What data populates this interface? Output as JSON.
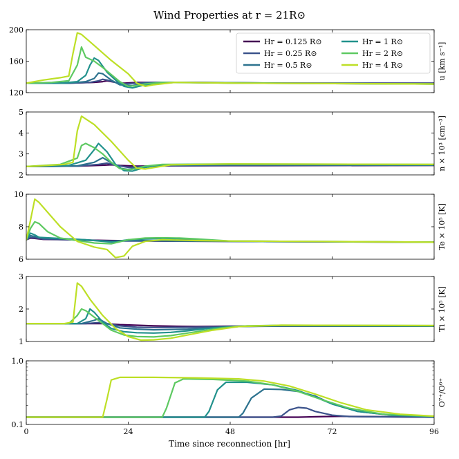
{
  "figure": {
    "title": "Wind Properties at r = 21R⊙",
    "xlabel": "Time since reconnection [hr]"
  },
  "colors": {
    "0.125": "#440154",
    "0.25": "#3b528b",
    "0.5": "#2c728e",
    "1": "#21918c",
    "2": "#5ec962",
    "4": "#bddf26"
  },
  "chart_data": [
    {
      "type": "line",
      "panel": "u",
      "ylabel": "u [km s⁻¹]",
      "ylim": [
        120,
        200
      ],
      "yticks": [
        120,
        160,
        200
      ],
      "xlim": [
        0,
        96
      ],
      "xticks": [
        0,
        24,
        48,
        72,
        96
      ],
      "legend": {
        "placement": "top-right",
        "entries": [
          "Hr = 0.125 R⊙",
          "Hr = 0.25 R⊙",
          "Hr = 0.5 R⊙",
          "Hr = 1 R⊙",
          "Hr = 2 R⊙",
          "Hr = 4 R⊙"
        ]
      },
      "series": [
        {
          "name": "Hr = 0.125 R⊙",
          "key": "0.125",
          "x": [
            0,
            10,
            16,
            18,
            19,
            20,
            21,
            23,
            26,
            30,
            40,
            60,
            96
          ],
          "y": [
            132,
            132,
            133,
            134,
            135,
            134,
            133,
            132,
            133,
            133,
            133,
            132,
            132
          ]
        },
        {
          "name": "Hr = 0.25 R⊙",
          "key": "0.25",
          "x": [
            0,
            10,
            15,
            17,
            18,
            19,
            21,
            23,
            26,
            30,
            40,
            60,
            96
          ],
          "y": [
            132,
            132,
            133,
            135,
            137,
            136,
            133,
            131,
            132,
            133,
            133,
            132,
            132
          ]
        },
        {
          "name": "Hr = 0.5 R⊙",
          "key": "0.5",
          "x": [
            0,
            10,
            14,
            16,
            17,
            18,
            20,
            22,
            25,
            28,
            35,
            50,
            96
          ],
          "y": [
            132,
            132,
            134,
            138,
            145,
            144,
            136,
            130,
            129,
            132,
            133,
            132,
            131
          ]
        },
        {
          "name": "Hr = 1 R⊙",
          "key": "1",
          "x": [
            0,
            8,
            12,
            14,
            15,
            16,
            17,
            19,
            21,
            23,
            25,
            28,
            35,
            60,
            96
          ],
          "y": [
            132,
            132,
            134,
            142,
            155,
            164,
            161,
            146,
            136,
            128,
            126,
            130,
            133,
            132,
            131
          ]
        },
        {
          "name": "Hr = 2 R⊙",
          "key": "2",
          "x": [
            0,
            6,
            10,
            12,
            13,
            14,
            16,
            18,
            20,
            22,
            24,
            26,
            28,
            32,
            50,
            96
          ],
          "y": [
            132,
            133,
            135,
            155,
            178,
            165,
            160,
            152,
            143,
            134,
            128,
            129,
            131,
            133,
            132,
            131
          ]
        },
        {
          "name": "Hr = 4 R⊙",
          "key": "4",
          "x": [
            0,
            4,
            8,
            10,
            11,
            12,
            13,
            16,
            20,
            24,
            26,
            28,
            30,
            35,
            50,
            96
          ],
          "y": [
            132,
            136,
            139,
            141,
            170,
            196,
            194,
            180,
            161,
            144,
            132,
            128,
            130,
            133,
            132,
            131
          ]
        }
      ]
    },
    {
      "type": "line",
      "panel": "n",
      "ylabel": "n × 10³ [cm⁻³]",
      "ylim": [
        2,
        5
      ],
      "yticks": [
        2,
        3,
        4,
        5
      ],
      "xlim": [
        0,
        96
      ],
      "xticks": [
        0,
        24,
        48,
        72,
        96
      ],
      "series": [
        {
          "name": "Hr = 0.125 R⊙",
          "key": "0.125",
          "x": [
            0,
            12,
            18,
            20,
            22,
            26,
            32,
            48,
            96
          ],
          "y": [
            2.4,
            2.42,
            2.46,
            2.48,
            2.45,
            2.42,
            2.43,
            2.44,
            2.45
          ]
        },
        {
          "name": "Hr = 0.25 R⊙",
          "key": "0.25",
          "x": [
            0,
            12,
            17,
            19,
            21,
            24,
            28,
            32,
            48,
            96
          ],
          "y": [
            2.4,
            2.42,
            2.5,
            2.56,
            2.46,
            2.36,
            2.4,
            2.44,
            2.45,
            2.46
          ]
        },
        {
          "name": "Hr = 0.5 R⊙",
          "key": "0.5",
          "x": [
            0,
            12,
            16,
            18,
            20,
            22,
            24,
            27,
            32,
            48,
            96
          ],
          "y": [
            2.4,
            2.43,
            2.6,
            2.82,
            2.58,
            2.32,
            2.26,
            2.38,
            2.46,
            2.48,
            2.47
          ]
        },
        {
          "name": "Hr = 1 R⊙",
          "key": "1",
          "x": [
            0,
            10,
            14,
            16,
            17,
            19,
            21,
            23,
            25,
            28,
            32,
            48,
            96
          ],
          "y": [
            2.4,
            2.45,
            2.7,
            3.2,
            3.5,
            3.1,
            2.5,
            2.2,
            2.18,
            2.36,
            2.48,
            2.5,
            2.48
          ]
        },
        {
          "name": "Hr = 2 R⊙",
          "key": "2",
          "x": [
            0,
            8,
            12,
            13,
            14,
            16,
            18,
            20,
            22,
            24,
            26,
            28,
            32,
            48,
            96
          ],
          "y": [
            2.4,
            2.5,
            2.8,
            3.4,
            3.5,
            3.3,
            3.0,
            2.6,
            2.3,
            2.24,
            2.3,
            2.42,
            2.5,
            2.52,
            2.5
          ]
        },
        {
          "name": "Hr = 4 R⊙",
          "key": "4",
          "x": [
            0,
            5,
            9,
            11,
            12,
            13,
            16,
            20,
            24,
            26,
            28,
            30,
            34,
            48,
            96
          ],
          "y": [
            2.4,
            2.45,
            2.5,
            2.6,
            4.1,
            4.8,
            4.4,
            3.6,
            2.7,
            2.32,
            2.28,
            2.35,
            2.48,
            2.52,
            2.5
          ]
        }
      ]
    },
    {
      "type": "line",
      "panel": "Te",
      "ylabel": "Te × 10⁵ [K]",
      "ylim": [
        6,
        10
      ],
      "yticks": [
        6,
        8,
        10
      ],
      "xlim": [
        0,
        96
      ],
      "xticks": [
        0,
        24,
        48,
        72,
        96
      ],
      "series": [
        {
          "name": "Hr = 0.125 R⊙",
          "key": "0.125",
          "x": [
            0,
            1,
            2,
            4,
            10,
            20,
            30,
            48,
            96
          ],
          "y": [
            7.2,
            7.3,
            7.28,
            7.22,
            7.2,
            7.15,
            7.12,
            7.1,
            7.05
          ]
        },
        {
          "name": "Hr = 0.25 R⊙",
          "key": "0.25",
          "x": [
            0,
            1,
            2,
            4,
            10,
            20,
            30,
            48,
            96
          ],
          "y": [
            7.2,
            7.35,
            7.32,
            7.24,
            7.2,
            7.12,
            7.12,
            7.1,
            7.05
          ]
        },
        {
          "name": "Hr = 0.5 R⊙",
          "key": "0.5",
          "x": [
            0,
            1,
            2,
            4,
            10,
            20,
            24,
            30,
            48,
            96
          ],
          "y": [
            7.2,
            7.45,
            7.4,
            7.3,
            7.25,
            7.1,
            7.15,
            7.15,
            7.1,
            7.05
          ]
        },
        {
          "name": "Hr = 1 R⊙",
          "key": "1",
          "x": [
            0,
            1,
            2,
            3,
            6,
            10,
            14,
            18,
            20,
            24,
            28,
            32,
            40,
            48,
            96
          ],
          "y": [
            7.2,
            7.6,
            7.5,
            7.35,
            7.3,
            7.25,
            7.2,
            7.1,
            7.05,
            7.2,
            7.25,
            7.28,
            7.2,
            7.12,
            7.05
          ]
        },
        {
          "name": "Hr = 2 R⊙",
          "key": "2",
          "x": [
            0,
            1,
            2,
            3,
            5,
            8,
            12,
            16,
            20,
            24,
            28,
            32,
            36,
            40,
            48,
            96
          ],
          "y": [
            7.2,
            7.9,
            8.3,
            8.2,
            7.7,
            7.3,
            7.15,
            7.0,
            6.95,
            7.2,
            7.3,
            7.32,
            7.3,
            7.25,
            7.12,
            7.05
          ]
        },
        {
          "name": "Hr = 4 R⊙",
          "key": "4",
          "x": [
            0,
            1,
            2,
            3,
            5,
            8,
            12,
            16,
            19,
            21,
            23,
            25,
            28,
            32,
            40,
            48,
            96
          ],
          "y": [
            7.2,
            8.4,
            9.7,
            9.5,
            8.9,
            8.0,
            7.1,
            6.75,
            6.6,
            6.1,
            6.2,
            6.8,
            7.1,
            7.2,
            7.15,
            7.12,
            7.05
          ]
        }
      ]
    },
    {
      "type": "line",
      "panel": "Ti",
      "ylabel": "Ti × 10⁵ [K]",
      "ylim": [
        1,
        3
      ],
      "yticks": [
        1,
        2,
        3
      ],
      "xlim": [
        0,
        96
      ],
      "xticks": [
        0,
        24,
        48,
        72,
        96
      ],
      "series": [
        {
          "name": "Hr = 0.125 R⊙",
          "key": "0.125",
          "x": [
            0,
            14,
            18,
            22,
            26,
            30,
            40,
            48,
            60,
            96
          ],
          "y": [
            1.55,
            1.55,
            1.55,
            1.52,
            1.5,
            1.48,
            1.46,
            1.47,
            1.48,
            1.48
          ]
        },
        {
          "name": "Hr = 0.25 R⊙",
          "key": "0.25",
          "x": [
            0,
            14,
            17,
            19,
            22,
            26,
            30,
            40,
            48,
            60,
            96
          ],
          "y": [
            1.55,
            1.55,
            1.58,
            1.55,
            1.48,
            1.44,
            1.43,
            1.44,
            1.46,
            1.47,
            1.47
          ]
        },
        {
          "name": "Hr = 0.5 R⊙",
          "key": "0.5",
          "x": [
            0,
            13,
            16,
            17,
            19,
            22,
            26,
            30,
            38,
            44,
            50,
            60,
            96
          ],
          "y": [
            1.55,
            1.55,
            1.65,
            1.7,
            1.55,
            1.42,
            1.38,
            1.36,
            1.38,
            1.42,
            1.46,
            1.48,
            1.47
          ]
        },
        {
          "name": "Hr = 1 R⊙",
          "key": "1",
          "x": [
            0,
            12,
            14,
            15,
            16,
            18,
            20,
            23,
            26,
            30,
            34,
            38,
            44,
            50,
            60,
            96
          ],
          "y": [
            1.55,
            1.55,
            1.7,
            2.0,
            1.9,
            1.6,
            1.4,
            1.3,
            1.27,
            1.26,
            1.28,
            1.33,
            1.42,
            1.47,
            1.49,
            1.48
          ]
        },
        {
          "name": "Hr = 2 R⊙",
          "key": "2",
          "x": [
            0,
            10,
            12,
            13,
            14,
            16,
            18,
            20,
            23,
            26,
            30,
            34,
            40,
            46,
            52,
            60,
            96
          ],
          "y": [
            1.55,
            1.55,
            1.8,
            2.0,
            1.95,
            1.75,
            1.55,
            1.35,
            1.2,
            1.15,
            1.14,
            1.18,
            1.3,
            1.42,
            1.48,
            1.5,
            1.49
          ]
        },
        {
          "name": "Hr = 4 R⊙",
          "key": "4",
          "x": [
            0,
            9,
            11,
            12,
            13,
            15,
            18,
            21,
            24,
            27,
            30,
            34,
            38,
            44,
            50,
            60,
            96
          ],
          "y": [
            1.55,
            1.55,
            1.6,
            2.8,
            2.7,
            2.3,
            1.8,
            1.4,
            1.15,
            1.04,
            1.05,
            1.1,
            1.2,
            1.35,
            1.46,
            1.5,
            1.49
          ]
        }
      ]
    },
    {
      "type": "line",
      "panel": "O",
      "ylabel": "O⁷⁺/O⁶⁺",
      "yscale": "log",
      "ylim": [
        0.1,
        1.0
      ],
      "yticks": [
        0.1,
        1.0
      ],
      "ytick_labels": [
        "0.1",
        "1.0"
      ],
      "xlim": [
        0,
        96
      ],
      "xticks": [
        0,
        24,
        48,
        72,
        96
      ],
      "series": [
        {
          "name": "Hr = 0.125 R⊙",
          "key": "0.125",
          "x": [
            0,
            60,
            64,
            66,
            68,
            70,
            74,
            80,
            96
          ],
          "y": [
            0.13,
            0.13,
            0.13,
            0.131,
            0.132,
            0.133,
            0.134,
            0.133,
            0.13
          ]
        },
        {
          "name": "Hr = 0.25 R⊙",
          "key": "0.25",
          "x": [
            0,
            58,
            60,
            62,
            64,
            66,
            68,
            72,
            76,
            96
          ],
          "y": [
            0.13,
            0.13,
            0.135,
            0.17,
            0.185,
            0.18,
            0.16,
            0.14,
            0.133,
            0.13
          ]
        },
        {
          "name": "Hr = 0.5 R⊙",
          "key": "0.5",
          "x": [
            0,
            50,
            51,
            53,
            56,
            60,
            64,
            68,
            72,
            78,
            86,
            96
          ],
          "y": [
            0.13,
            0.13,
            0.15,
            0.26,
            0.36,
            0.355,
            0.33,
            0.28,
            0.21,
            0.16,
            0.14,
            0.132
          ]
        },
        {
          "name": "Hr = 1 R⊙",
          "key": "1",
          "x": [
            0,
            42,
            43,
            45,
            47,
            52,
            58,
            64,
            68,
            72,
            78,
            86,
            96
          ],
          "y": [
            0.13,
            0.13,
            0.16,
            0.35,
            0.46,
            0.46,
            0.42,
            0.34,
            0.27,
            0.21,
            0.16,
            0.14,
            0.133
          ]
        },
        {
          "name": "Hr = 2 R⊙",
          "key": "2",
          "x": [
            0,
            32,
            33,
            35,
            37,
            44,
            52,
            58,
            64,
            70,
            76,
            84,
            96
          ],
          "y": [
            0.13,
            0.13,
            0.18,
            0.45,
            0.52,
            0.51,
            0.48,
            0.42,
            0.33,
            0.24,
            0.18,
            0.145,
            0.134
          ]
        },
        {
          "name": "Hr = 4 R⊙",
          "key": "4",
          "x": [
            0,
            18,
            19,
            20,
            22,
            30,
            40,
            50,
            56,
            62,
            68,
            74,
            80,
            88,
            96
          ],
          "y": [
            0.13,
            0.13,
            0.25,
            0.5,
            0.55,
            0.55,
            0.54,
            0.52,
            0.48,
            0.4,
            0.3,
            0.22,
            0.17,
            0.145,
            0.135
          ]
        }
      ]
    }
  ]
}
